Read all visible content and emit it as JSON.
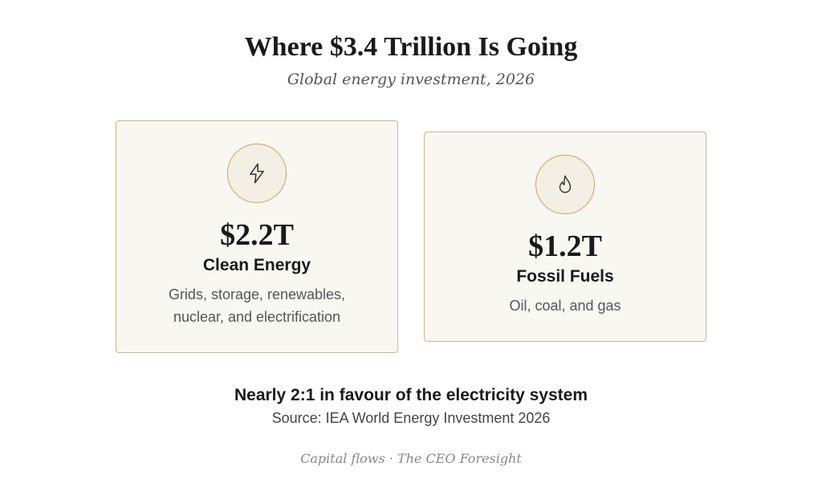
{
  "header": {
    "title": "Where $3.4 Trillion Is Going",
    "subtitle": "Global energy investment, 2026"
  },
  "cards": [
    {
      "value": "$2.2T",
      "label": "Clean Energy",
      "description": "Grids, storage, renewables, nuclear, and electrification"
    },
    {
      "value": "$1.2T",
      "label": "Fossil Fuels",
      "description": "Oil, coal, and gas"
    }
  ],
  "footer": {
    "summary": "Nearly 2:1 in favour of the electricity system",
    "source": "Source: IEA World Energy Investment 2026",
    "credit": "Capital flows · The CEO Foresight"
  }
}
